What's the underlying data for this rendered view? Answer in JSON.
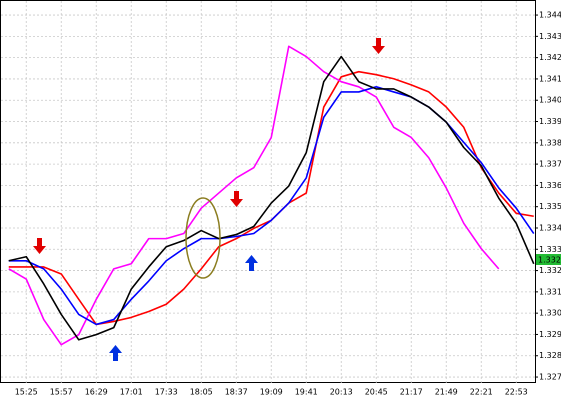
{
  "chart_data": {
    "type": "line",
    "categories": [
      null,
      "15:25",
      null,
      "15:57",
      null,
      "16:29",
      null,
      "17:01",
      null,
      "17:33",
      null,
      "18:05",
      null,
      "18:37",
      null,
      "19:09",
      null,
      "19:41",
      null,
      "20:13",
      null,
      "20:45",
      null,
      "21:17",
      null,
      "21:49",
      null,
      "22:21",
      null,
      "22:53",
      null
    ],
    "series": [
      {
        "color": "#ff0000",
        "values": [
          1.33217,
          1.33217,
          1.33217,
          1.33184,
          1.33065,
          1.32947,
          1.32961,
          1.3298,
          1.33008,
          1.33042,
          1.33113,
          1.33208,
          1.33312,
          1.3335,
          1.33398,
          1.33436,
          1.33517,
          1.33564,
          1.33968,
          1.3411,
          1.34134,
          1.3412,
          1.34101,
          1.34072,
          1.34039,
          1.33968,
          1.33873,
          1.33683,
          1.33564,
          1.33469,
          1.33455
        ]
      },
      {
        "color": "#ff00ff",
        "values": [
          1.33208,
          1.3316,
          1.3297,
          1.32852,
          1.32899,
          1.33065,
          1.33208,
          1.33232,
          1.3335,
          1.3335,
          1.33374,
          1.33493,
          1.33564,
          1.33635,
          1.33683,
          1.33825,
          1.34253,
          1.34205,
          1.34134,
          1.34087,
          1.34063,
          1.34015,
          1.33873,
          1.33825,
          1.3373,
          1.33588,
          1.33422,
          1.33303,
          1.33208,
          null,
          null
        ]
      },
      {
        "color": "#0000ff",
        "values": [
          1.33246,
          1.33246,
          1.33208,
          1.33113,
          1.32994,
          1.32947,
          1.3297,
          1.33065,
          1.33151,
          1.33246,
          1.33303,
          1.3335,
          1.3335,
          1.3336,
          1.33374,
          1.33436,
          1.33517,
          1.33635,
          1.3392,
          1.34039,
          1.34039,
          1.34063,
          1.34039,
          1.34015,
          1.33968,
          1.33897,
          1.33802,
          1.33707,
          1.33588,
          1.33493,
          1.33374
        ]
      },
      {
        "color": "#000000",
        "values": [
          1.33246,
          1.33265,
          1.33137,
          1.32994,
          1.32875,
          1.32899,
          1.32932,
          1.33113,
          1.33217,
          1.33312,
          1.33341,
          1.33388,
          1.3335,
          1.33369,
          1.33407,
          1.33517,
          1.33597,
          1.33754,
          1.34087,
          1.34205,
          1.34087,
          1.34053,
          1.34053,
          1.34015,
          1.33968,
          1.33897,
          1.33778,
          1.33692,
          1.3354,
          1.33422,
          1.33232
        ]
      }
    ],
    "ylim": [
      1.32672,
      1.34466
    ],
    "yticks": [
      {
        "value": 1.327,
        "label": "1.32700"
      },
      {
        "value": 1.328,
        "label": "1.32800"
      },
      {
        "value": 1.329,
        "label": "1.32900"
      },
      {
        "value": 1.33,
        "label": "1.33000"
      },
      {
        "value": 1.331,
        "label": "1.33100"
      },
      {
        "value": 1.332,
        "label": "1.33200"
      },
      {
        "value": 1.333,
        "label": "1.33300"
      },
      {
        "value": 1.334,
        "label": "1.33400"
      },
      {
        "value": 1.335,
        "label": "1.33500"
      },
      {
        "value": 1.336,
        "label": "1.33600"
      },
      {
        "value": 1.337,
        "label": "1.33700"
      },
      {
        "value": 1.338,
        "label": "1.33800"
      },
      {
        "value": 1.339,
        "label": "1.33900"
      },
      {
        "value": 1.34,
        "label": "1.34000"
      },
      {
        "value": 1.341,
        "label": "1.34100"
      },
      {
        "value": 1.342,
        "label": "1.34200"
      },
      {
        "value": 1.343,
        "label": "1.34300"
      },
      {
        "value": 1.344,
        "label": "1.34400"
      }
    ],
    "grid": true,
    "price_label": "1.33220"
  }
}
